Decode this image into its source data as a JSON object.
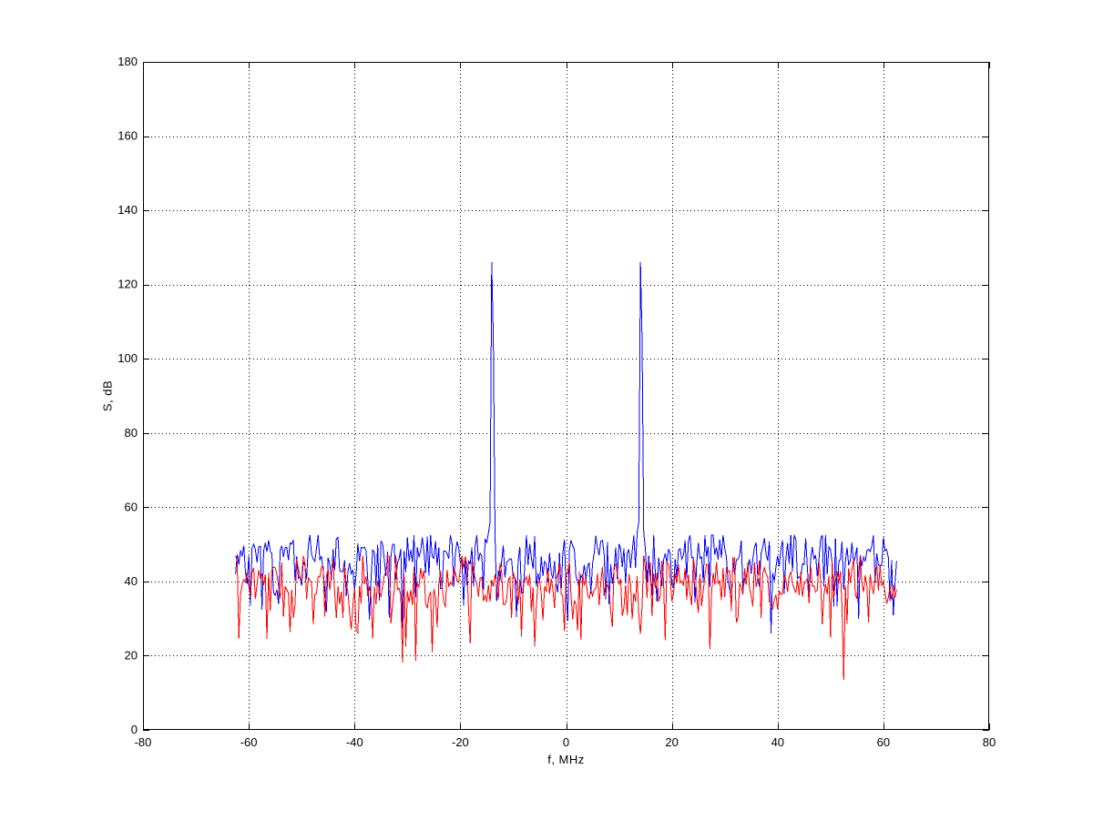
{
  "window": {
    "background": "#ffffff"
  },
  "chart_data": {
    "type": "line",
    "title": "",
    "xlabel": "f, MHz",
    "ylabel": "S, dB",
    "xlim": [
      -80,
      80
    ],
    "ylim": [
      0,
      180
    ],
    "xticks": [
      -80,
      -60,
      -40,
      -20,
      0,
      20,
      40,
      60,
      80
    ],
    "yticks": [
      0,
      20,
      40,
      60,
      80,
      100,
      120,
      140,
      160,
      180
    ],
    "grid": "dotted",
    "grid_color": "#000000",
    "axis_color": "#000000",
    "tick_direction": "in",
    "legend": "none",
    "series": [
      {
        "name": "blue-spectrum",
        "color": "#0000ff",
        "x_start_mhz": -62.5,
        "x_end_mhz": 62.5,
        "points": 401,
        "noise": {
          "base_db": 47.5,
          "min_db": 26,
          "max_db": 52.5,
          "seed": 20
        },
        "peaks": [
          {
            "f_mhz": -14,
            "level_db": 126,
            "skirt_left_db": [
              56,
              53
            ],
            "skirt_right_db": [
              105,
              53
            ]
          },
          {
            "f_mhz": 14,
            "level_db": 126,
            "skirt_left_db": [
              56,
              53
            ],
            "skirt_right_db": [
              105,
              53
            ]
          }
        ]
      },
      {
        "name": "red-spectrum",
        "color": "#ff0000",
        "x_start_mhz": -62.5,
        "x_end_mhz": 62.5,
        "points": 401,
        "noise": {
          "base_db": 41,
          "min_db": 13.5,
          "max_db": 47,
          "seed": 7
        },
        "peaks": []
      }
    ]
  }
}
